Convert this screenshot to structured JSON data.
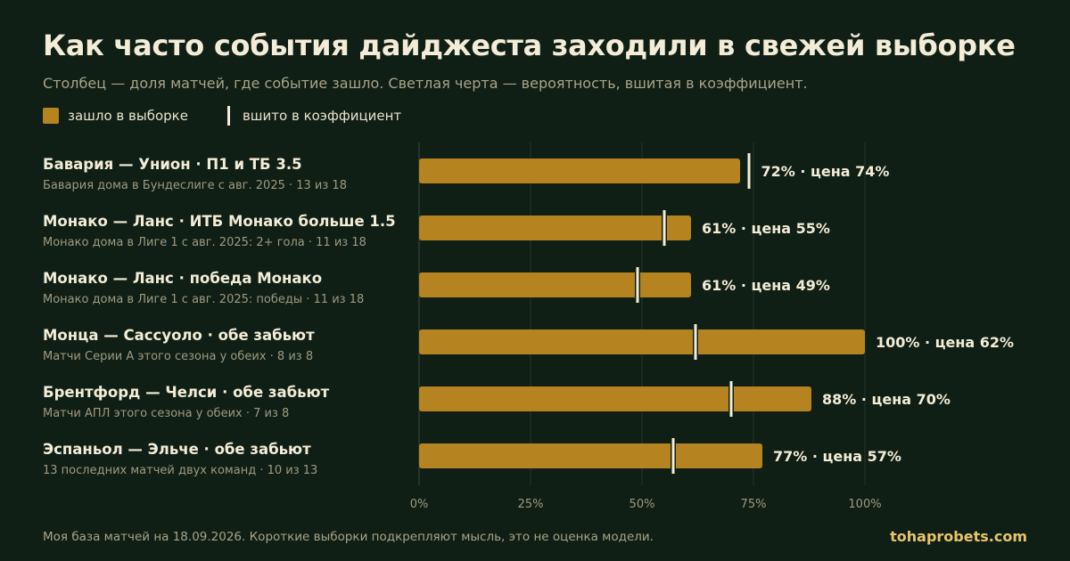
{
  "header": {
    "title": "Как часто события дайджеста заходили в свежей выборке",
    "subtitle": "Столбец — доля матчей, где событие зашло. Светлая черта — вероятность, вшитая в коэффициент."
  },
  "legend": {
    "bar_label": "зашло в выборке",
    "tick_label": "вшито в коэффициент"
  },
  "colors": {
    "background": "#0f1f15",
    "bar": "#b5831f",
    "tick": "#f3ecd6",
    "grid": "#24342a",
    "brand": "#e8c46a"
  },
  "chart_data": {
    "type": "bar",
    "orientation": "horizontal",
    "xlim": [
      0,
      100
    ],
    "x_ticks": [
      "0%",
      "25%",
      "50%",
      "75%",
      "100%"
    ],
    "x_tick_values": [
      0,
      25,
      50,
      75,
      100
    ],
    "grid": true,
    "rows": [
      {
        "title": "Бавария — Унион · П1 и ТБ 3.5",
        "subtitle": "Бавария дома в Бундеслиге с авг. 2025 · 13 из 18",
        "hit": 72,
        "price": 74,
        "label": "72% · цена 74%"
      },
      {
        "title": "Монако — Ланс · ИТБ Монако больше 1.5",
        "subtitle": "Монако дома в Лиге 1 с авг. 2025: 2+ гола · 11 из 18",
        "hit": 61,
        "price": 55,
        "label": "61% · цена 55%"
      },
      {
        "title": "Монако — Ланс · победа Монако",
        "subtitle": "Монако дома в Лиге 1 с авг. 2025: победы · 11 из 18",
        "hit": 61,
        "price": 49,
        "label": "61% · цена 49%"
      },
      {
        "title": "Монца — Сассуоло · обе забьют",
        "subtitle": "Матчи Серии А этого сезона у обеих · 8 из 8",
        "hit": 100,
        "price": 62,
        "label": "100% · цена 62%"
      },
      {
        "title": "Брентфорд — Челси · обе забьют",
        "subtitle": "Матчи АПЛ этого сезона у обеих · 7 из 8",
        "hit": 88,
        "price": 70,
        "label": "88% · цена 70%"
      },
      {
        "title": "Эспаньол — Эльче · обе забьют",
        "subtitle": "13 последних матчей двух команд · 10 из 13",
        "hit": 77,
        "price": 57,
        "label": "77% · цена 57%"
      }
    ]
  },
  "footer": {
    "note": "Моя база матчей на 18.09.2026. Короткие выборки подкрепляют мысль, это не оценка модели.",
    "brand": "tohaprobets.com"
  }
}
